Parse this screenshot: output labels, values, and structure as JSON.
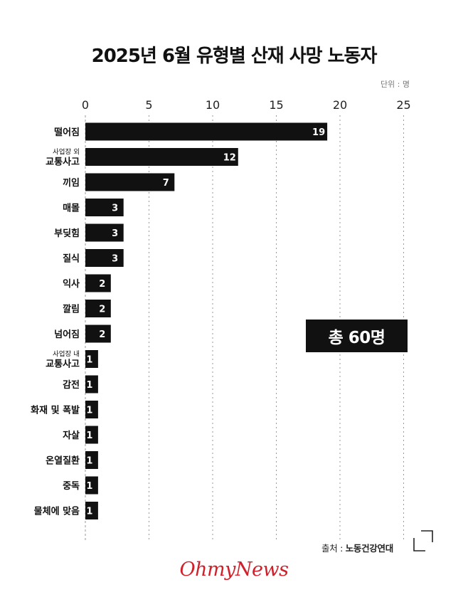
{
  "title": "2025년 6월 유형별 산재 사망 노동자",
  "unit_label": "단위 : 명",
  "total_label": "총 60명",
  "source": {
    "prefix": "출처 :",
    "name": "노동건강연대"
  },
  "logo_text": "OhmyNews",
  "colors": {
    "bar": "#111111",
    "bar_label": "#ffffff",
    "grid": "#9a9a9a",
    "logo": "#d0202a"
  },
  "chart_data": {
    "type": "bar",
    "orientation": "horizontal",
    "xlim": [
      0,
      25
    ],
    "xticks": [
      0,
      5,
      10,
      15,
      20,
      25
    ],
    "grid": "vertical-dotted",
    "categories": [
      {
        "lines": [
          "떨어짐"
        ]
      },
      {
        "lines": [
          "사업장 외",
          "교통사고"
        ]
      },
      {
        "lines": [
          "끼임"
        ]
      },
      {
        "lines": [
          "매몰"
        ]
      },
      {
        "lines": [
          "부딪힘"
        ]
      },
      {
        "lines": [
          "질식"
        ]
      },
      {
        "lines": [
          "익사"
        ]
      },
      {
        "lines": [
          "깔림"
        ]
      },
      {
        "lines": [
          "넘어짐"
        ]
      },
      {
        "lines": [
          "사업장 내",
          "교통사고"
        ]
      },
      {
        "lines": [
          "감전"
        ]
      },
      {
        "lines": [
          "화재 및 폭발"
        ]
      },
      {
        "lines": [
          "자살"
        ]
      },
      {
        "lines": [
          "온열질환"
        ]
      },
      {
        "lines": [
          "중독"
        ]
      },
      {
        "lines": [
          "물체에 맞음"
        ]
      }
    ],
    "values": [
      19,
      12,
      7,
      3,
      3,
      3,
      2,
      2,
      2,
      1,
      1,
      1,
      1,
      1,
      1,
      1
    ]
  }
}
